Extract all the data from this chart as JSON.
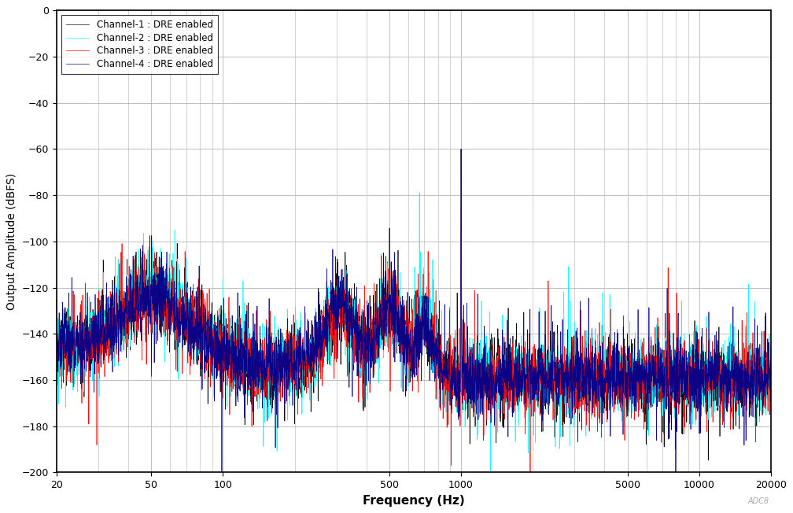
{
  "xlabel": "Frequency (Hz)",
  "ylabel": "Output Amplitude (dBFS)",
  "xlim_log": [
    20,
    20000
  ],
  "ylim": [
    -200,
    0
  ],
  "yticks": [
    0,
    -20,
    -40,
    -60,
    -80,
    -100,
    -120,
    -140,
    -160,
    -180,
    -200
  ],
  "xticks": [
    20,
    50,
    100,
    500,
    1000,
    5000,
    10000,
    20000
  ],
  "xtick_labels": [
    "20",
    "50",
    "100",
    "500",
    "1000",
    "5000",
    "10000",
    "20000"
  ],
  "fundamental_freq": 1000,
  "fundamental_dB": -60,
  "noise_floor_mean": -157,
  "channels": [
    {
      "name": "Channel-1 : DRE enabled",
      "color": "#000000",
      "seed": 42
    },
    {
      "name": "Channel-2 : DRE enabled",
      "color": "#00FFFF",
      "seed": 137
    },
    {
      "name": "Channel-3 : DRE enabled",
      "color": "#FF0000",
      "seed": 73
    },
    {
      "name": "Channel-4 : DRE enabled",
      "color": "#00008B",
      "seed": 256
    }
  ],
  "background_color": "#ffffff",
  "grid_color": "#c0c0c0",
  "watermark": "ADC8",
  "legend_loc": "upper left",
  "linewidth": 0.5
}
